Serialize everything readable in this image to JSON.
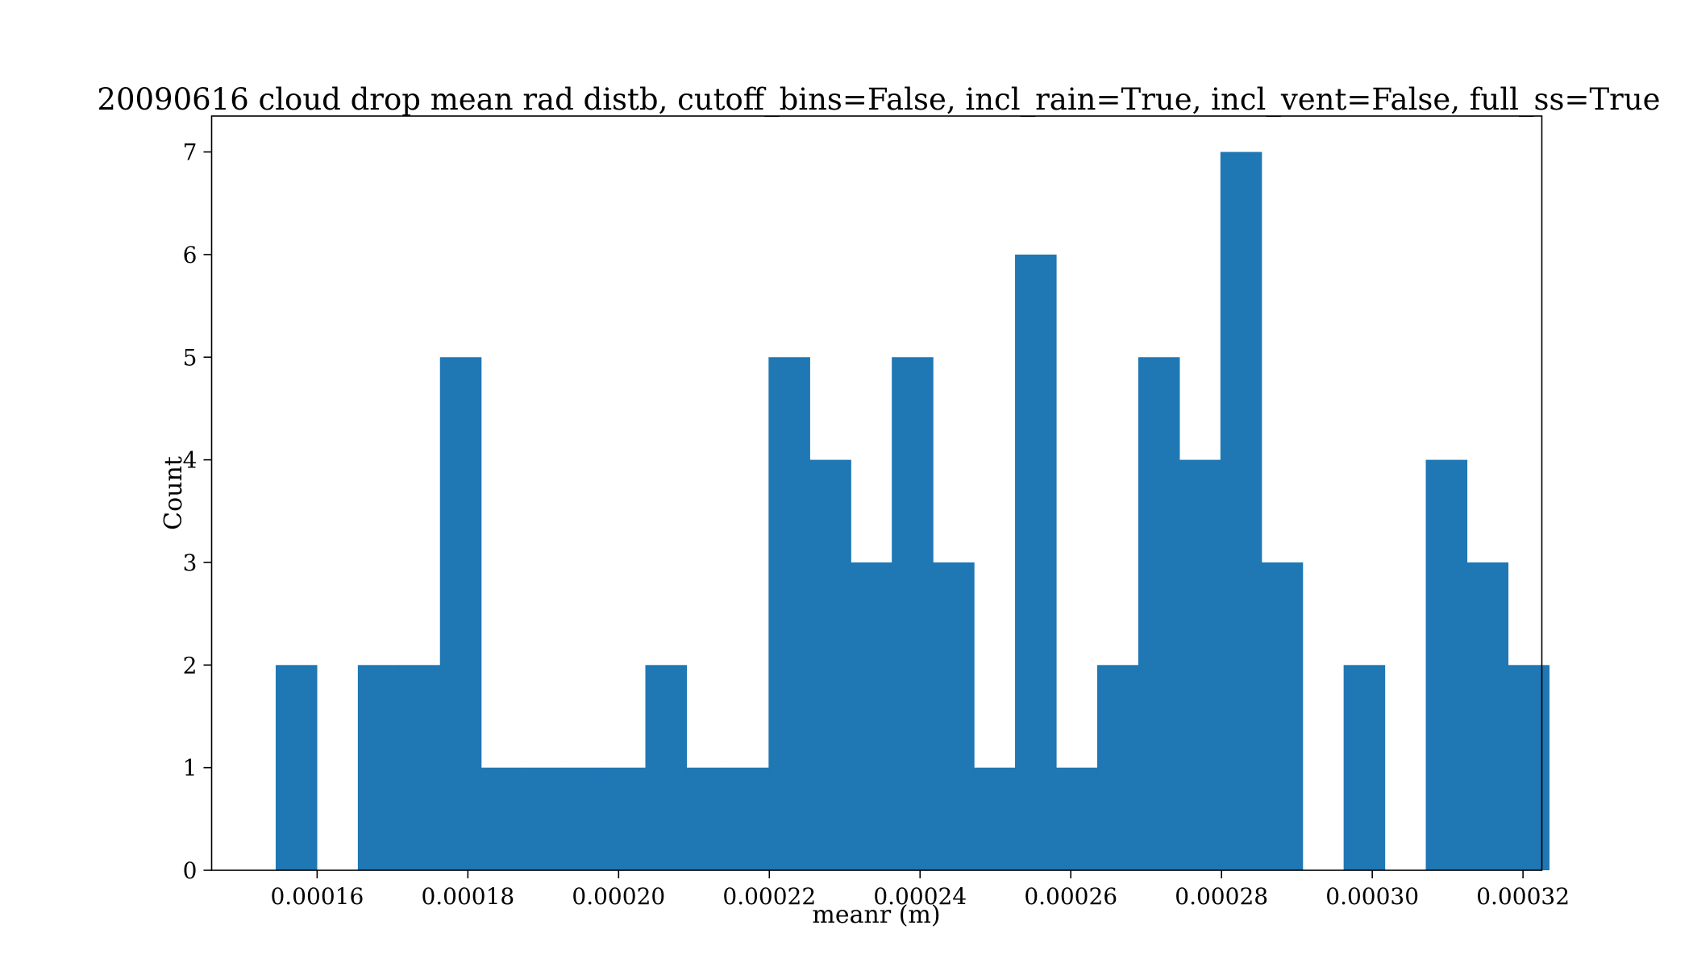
{
  "chart_data": {
    "type": "bar",
    "title": "20090616 cloud drop mean rad distb, cutoff_bins=False, incl_rain=True, incl_vent=False, full_ss=True",
    "xlabel": "meanr (m)",
    "ylabel": "Count",
    "xlim": [
      0.000146,
      0.0003225
    ],
    "ylim": [
      0,
      7.35
    ],
    "grid": false,
    "bar_color": "#1f77b4",
    "bin_start": 0.0001545,
    "bin_width": 5.45e-06,
    "x_ticks": [
      0.00016,
      0.00018,
      0.0002,
      0.00022,
      0.00024,
      0.00026,
      0.00028,
      0.0003,
      0.00032
    ],
    "x_tick_labels": [
      "0.00016",
      "0.00018",
      "0.00020",
      "0.00022",
      "0.00024",
      "0.00026",
      "0.00028",
      "0.00030",
      "0.00032"
    ],
    "y_ticks": [
      0,
      1,
      2,
      3,
      4,
      5,
      6,
      7
    ],
    "y_tick_labels": [
      "0",
      "1",
      "2",
      "3",
      "4",
      "5",
      "6",
      "7"
    ],
    "counts": [
      2,
      0,
      2,
      2,
      5,
      1,
      1,
      1,
      1,
      2,
      1,
      1,
      5,
      4,
      3,
      5,
      3,
      1,
      6,
      1,
      2,
      5,
      4,
      7,
      3,
      0,
      2,
      0,
      4,
      3,
      2
    ]
  }
}
